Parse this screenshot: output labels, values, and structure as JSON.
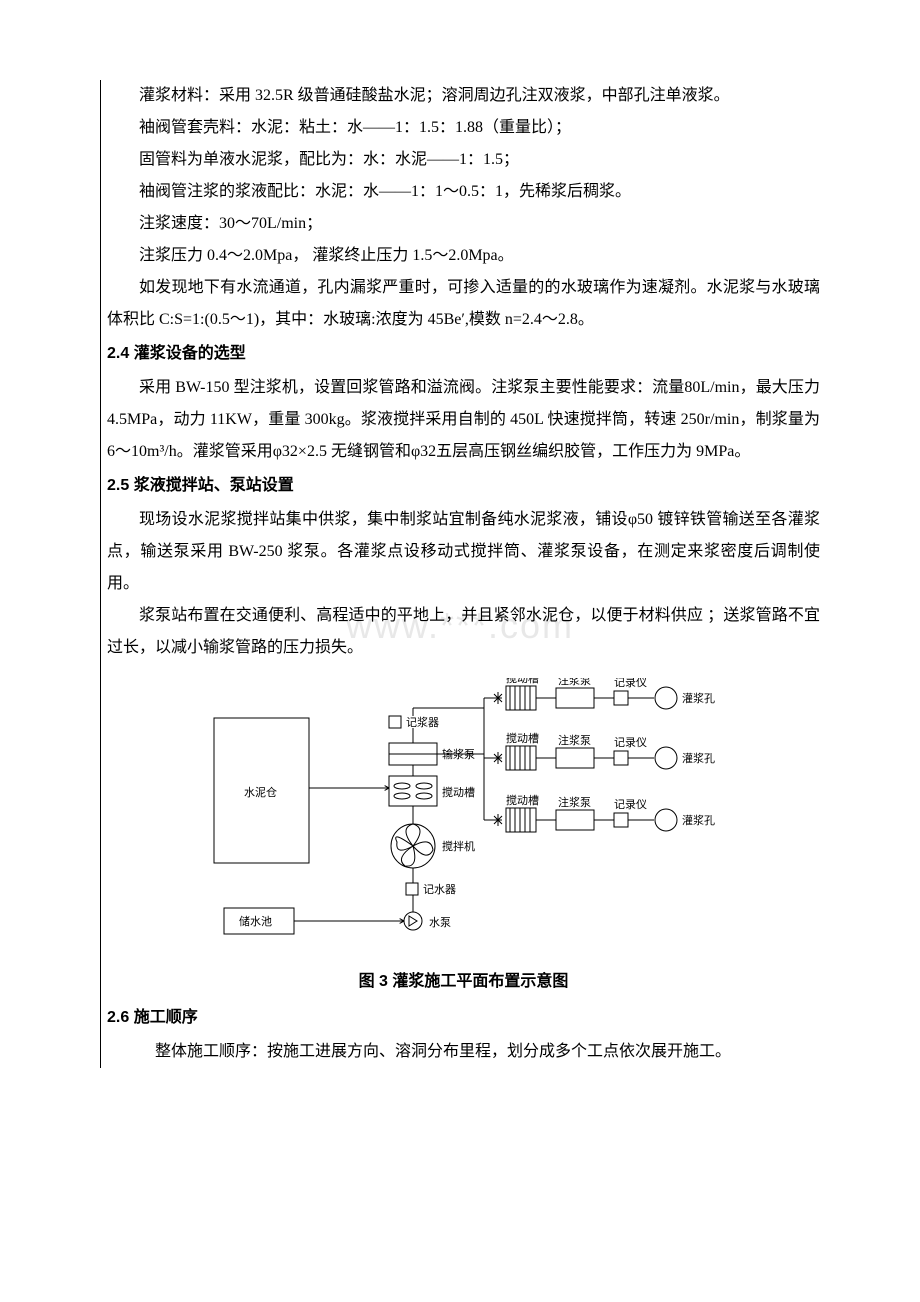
{
  "p1": "灌浆材料：采用 32.5R 级普通硅酸盐水泥；溶洞周边孔注双液浆，中部孔注单液浆。",
  "p2": "袖阀管套壳料：水泥：粘土：水——1：1.5：1.88（重量比）；",
  "p3": "固管料为单液水泥浆，配比为：水：水泥——1：1.5；",
  "p4": "袖阀管注浆的浆液配比：水泥：水——1：1～0.5：1，先稀浆后稠浆。",
  "p5": "注浆速度：30～70L/min；",
  "p6": "注浆压力 0.4～2.0Mpa，  灌浆终止压力 1.5～2.0Mpa。",
  "p7": "如发现地下有水流通道，孔内漏浆严重时，可掺入适量的的水玻璃作为速凝剂。水泥浆与水玻璃体积比 C:S=1:(0.5～1)，其中：水玻璃:浓度为 45Be′,模数 n=2.4～2.8。",
  "h1": "2.4 灌浆设备的选型",
  "p8": "采用 BW-150 型注浆机，设置回浆管路和溢流阀。注浆泵主要性能要求：流量80L/min，最大压力 4.5MPa，动力 11KW，重量 300kg。浆液搅拌采用自制的 450L 快速搅拌筒，转速 250r/min，制浆量为 6～10m³/h。灌浆管采用φ32×2.5 无缝钢管和φ32五层高压钢丝编织胶管，工作压力为 9MPa。",
  "h2": "2.5 浆液搅拌站、泵站设置",
  "p9": "现场设水泥浆搅拌站集中供浆，集中制浆站宜制备纯水泥浆液，铺设φ50 镀锌铁管输送至各灌浆点，输送泵采用 BW-250 浆泵。各灌浆点设移动式搅拌筒、灌浆泵设备，在测定来浆密度后调制使用。",
  "p10": "浆泵站布置在交通便利、高程适中的平地上，并且紧邻水泥仓，以便于材料供应 ；送浆管路不宜过长，以减小输浆管路的压力损失。",
  "caption": "图 3  灌浆施工平面布置示意图",
  "h3": "2.6 施工顺序",
  "p11": "整体施工顺序：按施工进展方向、溶洞分布里程，划分成多个工点依次展开施工。",
  "watermark": "www.***.com",
  "diagram": {
    "labels": {
      "cement_bin": "水泥仓",
      "recorder": "记浆器",
      "pump": "输浆泵",
      "mixer_tank": "搅动槽",
      "mixer": "搅拌机",
      "water_recorder": "记水器",
      "water_tank": "储水池",
      "water_pump": "水泵",
      "grout_pump": "注浆泵",
      "data_recorder": "记录仪",
      "grout_hole": "灌浆孔"
    },
    "colors": {
      "stroke": "#000000",
      "fill": "#ffffff",
      "text": "#000000"
    },
    "fontsize": 11,
    "stroke_width": 1
  }
}
